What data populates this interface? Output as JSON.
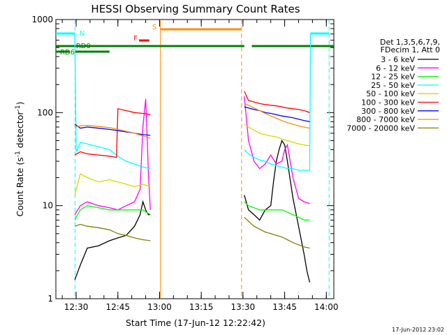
{
  "chart_data": {
    "type": "line",
    "title": "HESSI Observing Summary Count Rates",
    "xlabel": "Start Time (17-Jun-12 12:22:42)",
    "ylabel_main": "Count Rate (s",
    "ylabel_sup1": "-1",
    "ylabel_mid": " detector",
    "ylabel_sup2": "-1",
    "ylabel_end": ")",
    "x_ticks": [
      "12:30",
      "12:45",
      "13:00",
      "13:15",
      "13:30",
      "13:45",
      "14:00"
    ],
    "x_tick_minutes": [
      0,
      15,
      30,
      45,
      60,
      75,
      90
    ],
    "x_start_minute": -7.3,
    "x_end_minute": 92.7,
    "y_ticks": [
      "1",
      "10",
      "100",
      "1000"
    ],
    "y_tick_values": [
      1,
      10,
      100,
      1000
    ],
    "ylim": [
      1,
      1000
    ],
    "y_scale": "log",
    "legend_header": [
      "Det 1,3,5,6,7,9,",
      "FDecim 1, Att 0"
    ],
    "series": [
      {
        "name": "3 - 6 keV",
        "color": "#000000",
        "values": [
          [
            -0.5,
            1.6
          ],
          [
            1.5,
            2.3
          ],
          [
            4,
            3.5
          ],
          [
            8,
            3.7
          ],
          [
            12,
            4.2
          ],
          [
            15,
            4.5
          ],
          [
            18,
            4.8
          ],
          [
            21,
            6
          ],
          [
            23,
            8
          ],
          [
            24,
            11
          ],
          [
            25,
            9
          ],
          [
            26,
            8
          ],
          [
            26.7,
            8
          ],
          [
            60.5,
            13
          ],
          [
            62,
            9
          ],
          [
            64,
            8
          ],
          [
            66,
            7
          ],
          [
            68,
            9
          ],
          [
            70,
            10
          ],
          [
            71,
            18
          ],
          [
            72,
            30
          ],
          [
            73,
            40
          ],
          [
            74,
            50
          ],
          [
            75,
            45
          ],
          [
            76,
            30
          ],
          [
            78,
            12
          ],
          [
            80,
            6
          ],
          [
            82,
            3
          ],
          [
            83,
            2
          ],
          [
            84,
            1.5
          ]
        ]
      },
      {
        "name": "6 - 12 keV",
        "color": "#ff00ff",
        "values": [
          [
            -0.5,
            8
          ],
          [
            1.5,
            10
          ],
          [
            4,
            11
          ],
          [
            8,
            10
          ],
          [
            12,
            9.5
          ],
          [
            15,
            9
          ],
          [
            18,
            10
          ],
          [
            21,
            11
          ],
          [
            23,
            15
          ],
          [
            24,
            70
          ],
          [
            25,
            140
          ],
          [
            25.5,
            60
          ],
          [
            26,
            22
          ],
          [
            26.7,
            9
          ],
          [
            60.5,
            150
          ],
          [
            62,
            50
          ],
          [
            64,
            30
          ],
          [
            66,
            25
          ],
          [
            68,
            28
          ],
          [
            70,
            35
          ],
          [
            72,
            28
          ],
          [
            74,
            30
          ],
          [
            75,
            40
          ],
          [
            76,
            45
          ],
          [
            77,
            30
          ],
          [
            78,
            20
          ],
          [
            80,
            12
          ],
          [
            82,
            11
          ],
          [
            84,
            10.5
          ]
        ]
      },
      {
        "name": "12 - 25 keV",
        "color": "#00ff00",
        "values": [
          [
            -0.5,
            7
          ],
          [
            1.5,
            9
          ],
          [
            4,
            10
          ],
          [
            8,
            9.5
          ],
          [
            12,
            9
          ],
          [
            15,
            9
          ],
          [
            18,
            9
          ],
          [
            21,
            9
          ],
          [
            23,
            9
          ],
          [
            24,
            9
          ],
          [
            26.7,
            8
          ],
          [
            60.5,
            11
          ],
          [
            62,
            10
          ],
          [
            64,
            9.5
          ],
          [
            66,
            9
          ],
          [
            68,
            9
          ],
          [
            70,
            9
          ],
          [
            72,
            9
          ],
          [
            74,
            9
          ],
          [
            76,
            8.5
          ],
          [
            78,
            8
          ],
          [
            80,
            7.5
          ],
          [
            82,
            7
          ],
          [
            84,
            7
          ]
        ]
      },
      {
        "name": "25 - 50 keV",
        "color": "#00ffff",
        "values": [
          [
            -0.5,
            700
          ],
          [
            0,
            38
          ],
          [
            1.5,
            48
          ],
          [
            4,
            46
          ],
          [
            8,
            43
          ],
          [
            12,
            40
          ],
          [
            15,
            34
          ],
          [
            18,
            30
          ],
          [
            21,
            28
          ],
          [
            24,
            26
          ],
          [
            26.7,
            25
          ],
          [
            60.5,
            40
          ],
          [
            62,
            36
          ],
          [
            64,
            33
          ],
          [
            66,
            31
          ],
          [
            68,
            30
          ],
          [
            70,
            28
          ],
          [
            72,
            27
          ],
          [
            74,
            26
          ],
          [
            76,
            25
          ],
          [
            78,
            25
          ],
          [
            80,
            24
          ],
          [
            82,
            24
          ],
          [
            84,
            24
          ],
          [
            84.3,
            700
          ]
        ]
      },
      {
        "name": "50 - 100 keV",
        "color": "#d7d700",
        "values": [
          [
            -0.5,
            13
          ],
          [
            1.5,
            22
          ],
          [
            4,
            20
          ],
          [
            8,
            18
          ],
          [
            12,
            19
          ],
          [
            15,
            18
          ],
          [
            18,
            17
          ],
          [
            21,
            16
          ],
          [
            24,
            17
          ],
          [
            26.7,
            16
          ],
          [
            60.5,
            75
          ],
          [
            62,
            70
          ],
          [
            64,
            65
          ],
          [
            66,
            60
          ],
          [
            68,
            58
          ],
          [
            70,
            56
          ],
          [
            72,
            55
          ],
          [
            74,
            52
          ],
          [
            76,
            50
          ],
          [
            78,
            48
          ],
          [
            80,
            46
          ],
          [
            82,
            45
          ],
          [
            84,
            44
          ]
        ]
      },
      {
        "name": "100 - 300 keV",
        "color": "#ff0000",
        "values": [
          [
            -0.5,
            35
          ],
          [
            1.5,
            38
          ],
          [
            4,
            36
          ],
          [
            8,
            35
          ],
          [
            12,
            34
          ],
          [
            14.5,
            33
          ],
          [
            15,
            110
          ],
          [
            18,
            105
          ],
          [
            21,
            100
          ],
          [
            24,
            98
          ],
          [
            26.7,
            95
          ],
          [
            60.5,
            170
          ],
          [
            62,
            135
          ],
          [
            64,
            130
          ],
          [
            66,
            125
          ],
          [
            68,
            122
          ],
          [
            70,
            120
          ],
          [
            72,
            118
          ],
          [
            74,
            115
          ],
          [
            76,
            112
          ],
          [
            78,
            110
          ],
          [
            80,
            108
          ],
          [
            82,
            105
          ],
          [
            84,
            100
          ]
        ]
      },
      {
        "name": "300 - 800 keV",
        "color": "#0000ff",
        "values": [
          [
            -0.5,
            75
          ],
          [
            1.5,
            68
          ],
          [
            4,
            70
          ],
          [
            8,
            68
          ],
          [
            12,
            66
          ],
          [
            15,
            64
          ],
          [
            18,
            62
          ],
          [
            21,
            60
          ],
          [
            24,
            58
          ],
          [
            26.7,
            57
          ],
          [
            60.5,
            115
          ],
          [
            62,
            112
          ],
          [
            64,
            108
          ],
          [
            66,
            105
          ],
          [
            68,
            100
          ],
          [
            70,
            98
          ],
          [
            72,
            95
          ],
          [
            74,
            92
          ],
          [
            76,
            90
          ],
          [
            78,
            88
          ],
          [
            80,
            85
          ],
          [
            82,
            82
          ],
          [
            84,
            80
          ]
        ]
      },
      {
        "name": "800 - 7000 keV",
        "color": "#ff8c00",
        "values": [
          [
            -0.5,
            70
          ],
          [
            1.5,
            72
          ],
          [
            4,
            73
          ],
          [
            8,
            71
          ],
          [
            12,
            69
          ],
          [
            15,
            66
          ],
          [
            18,
            63
          ],
          [
            21,
            60
          ],
          [
            24,
            56
          ],
          [
            26.7,
            53
          ],
          [
            60.5,
            125
          ],
          [
            62,
            120
          ],
          [
            64,
            112
          ],
          [
            66,
            105
          ],
          [
            68,
            98
          ],
          [
            70,
            92
          ],
          [
            72,
            87
          ],
          [
            74,
            82
          ],
          [
            76,
            78
          ],
          [
            78,
            75
          ],
          [
            80,
            72
          ],
          [
            82,
            70
          ],
          [
            84,
            68
          ]
        ]
      },
      {
        "name": "7000 - 20000 keV",
        "color": "#808000",
        "values": [
          [
            -0.5,
            6
          ],
          [
            1.5,
            6.3
          ],
          [
            4,
            6
          ],
          [
            8,
            5.8
          ],
          [
            12,
            5.5
          ],
          [
            15,
            5
          ],
          [
            18,
            4.8
          ],
          [
            21,
            4.5
          ],
          [
            24,
            4.3
          ],
          [
            26.7,
            4.2
          ],
          [
            60.5,
            7.5
          ],
          [
            62,
            6.8
          ],
          [
            64,
            6
          ],
          [
            66,
            5.6
          ],
          [
            68,
            5.2
          ],
          [
            70,
            5
          ],
          [
            72,
            4.8
          ],
          [
            74,
            4.6
          ],
          [
            76,
            4.3
          ],
          [
            78,
            4
          ],
          [
            80,
            3.8
          ],
          [
            82,
            3.6
          ],
          [
            84,
            3.5
          ]
        ]
      }
    ],
    "vertical_markers": [
      {
        "minute": -0.4,
        "color": "#00ffff",
        "style": "dashed"
      },
      {
        "minute": 30.3,
        "color": "#ff8c00",
        "style": "solid"
      },
      {
        "minute": 59.5,
        "color": "#ff8c00",
        "style": "dashed"
      },
      {
        "minute": 91.0,
        "color": "#00ffff",
        "style": "dashed"
      }
    ],
    "status_bars": [
      {
        "label": "N",
        "color": "#00ffff",
        "segments": [
          [
            -7.3,
            -0.5
          ],
          [
            84.2,
            91.0
          ]
        ],
        "level": 0
      },
      {
        "label": "S",
        "color": "#ff8c00",
        "segments": [
          [
            30.4,
            59.3
          ]
        ],
        "level": 1
      },
      {
        "label": "F",
        "color": "#ff0000",
        "segments": [
          [
            22.6,
            26.3
          ]
        ],
        "level": 2
      },
      {
        "label": "RD0",
        "color": "#008000",
        "segments": [
          [
            -7.3,
            60.5
          ],
          [
            63.2,
            92.7
          ]
        ],
        "level": 3
      },
      {
        "label": "RD6",
        "color": "#008000",
        "segments": [
          [
            -7.3,
            -2.3
          ],
          [
            -0.3,
            12.0
          ]
        ],
        "level": 4
      }
    ]
  },
  "timestamp": "17-Jun-2012 23:02"
}
